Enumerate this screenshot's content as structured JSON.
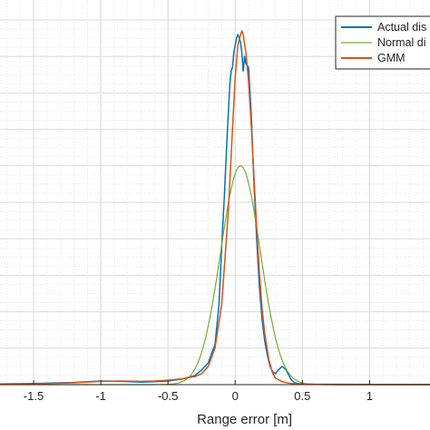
{
  "chart_data": {
    "type": "line",
    "xlabel": "Range error [m]",
    "ylabel": "",
    "title": "",
    "xlim": [
      -1.75,
      1.45
    ],
    "ylim": [
      0,
      1
    ],
    "xticks": [
      "-1.5",
      "-1",
      "-0.5",
      "0",
      "0.5",
      "1"
    ],
    "xtick_values": [
      -1.5,
      -1,
      -0.5,
      0,
      0.5,
      1
    ],
    "grid": true,
    "minor_grid": true,
    "legend_position": "top-right",
    "series": [
      {
        "name": "Actual dis",
        "color": "#0072BD",
        "x": [
          -1.75,
          -1.5,
          -1.2,
          -1.0,
          -0.85,
          -0.7,
          -0.6,
          -0.5,
          -0.4,
          -0.3,
          -0.25,
          -0.2,
          -0.15,
          -0.12,
          -0.1,
          -0.08,
          -0.06,
          -0.04,
          -0.03,
          -0.02,
          -0.01,
          0.0,
          0.01,
          0.02,
          0.03,
          0.04,
          0.05,
          0.06,
          0.07,
          0.08,
          0.1,
          0.12,
          0.14,
          0.16,
          0.18,
          0.2,
          0.22,
          0.24,
          0.26,
          0.28,
          0.3,
          0.32,
          0.35,
          0.38,
          0.4,
          0.42,
          0.44,
          0.46,
          0.5,
          0.6,
          0.8,
          1.0,
          1.2,
          1.45
        ],
        "y": [
          0.002,
          0.003,
          0.006,
          0.01,
          0.009,
          0.007,
          0.008,
          0.01,
          0.015,
          0.025,
          0.04,
          0.06,
          0.11,
          0.22,
          0.38,
          0.52,
          0.68,
          0.82,
          0.86,
          0.87,
          0.91,
          0.93,
          0.95,
          0.96,
          0.95,
          0.94,
          0.91,
          0.86,
          0.9,
          0.88,
          0.87,
          0.74,
          0.55,
          0.4,
          0.27,
          0.18,
          0.12,
          0.08,
          0.05,
          0.035,
          0.03,
          0.04,
          0.05,
          0.04,
          0.025,
          0.012,
          0.006,
          0.003,
          0.002,
          0.001,
          0.001,
          0.0005,
          0.0005,
          0.0005
        ]
      },
      {
        "name": "Normal di",
        "color": "#77AC30",
        "mean": 0.04,
        "std": 0.148,
        "peak": 0.6
      },
      {
        "name": "GMM",
        "color": "#D95319",
        "x": [
          -1.75,
          -1.5,
          -1.2,
          -1.0,
          -0.85,
          -0.7,
          -0.6,
          -0.5,
          -0.4,
          -0.3,
          -0.25,
          -0.2,
          -0.15,
          -0.1,
          -0.05,
          -0.02,
          0.0,
          0.02,
          0.04,
          0.05,
          0.06,
          0.08,
          0.1,
          0.12,
          0.14,
          0.16,
          0.18,
          0.2,
          0.22,
          0.25,
          0.28,
          0.3,
          0.35,
          0.4,
          0.45,
          0.5,
          0.6,
          0.8,
          1.0,
          1.2,
          1.45
        ],
        "y": [
          0.001,
          0.002,
          0.005,
          0.009,
          0.01,
          0.009,
          0.01,
          0.012,
          0.016,
          0.022,
          0.03,
          0.05,
          0.1,
          0.22,
          0.48,
          0.7,
          0.84,
          0.93,
          0.96,
          0.97,
          0.96,
          0.91,
          0.83,
          0.71,
          0.57,
          0.43,
          0.31,
          0.21,
          0.14,
          0.07,
          0.03,
          0.018,
          0.008,
          0.004,
          0.002,
          0.001,
          0.0005,
          0.0,
          0.0,
          0.0,
          0.0
        ]
      }
    ]
  }
}
